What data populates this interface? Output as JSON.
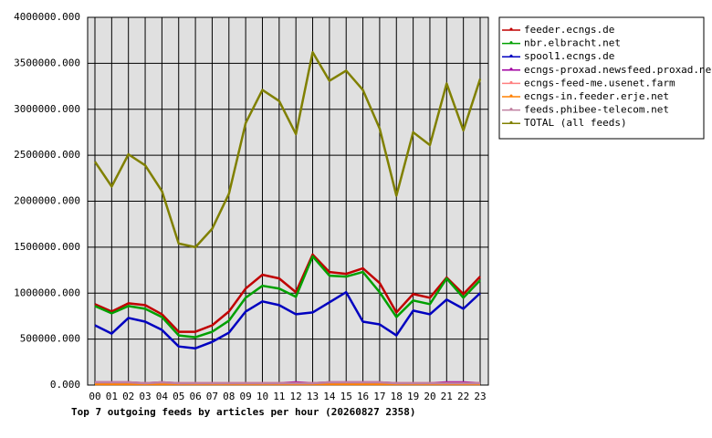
{
  "chart_data": {
    "type": "line",
    "title": "Top 7 outgoing feeds by articles per hour (20260827 2358)",
    "categories": [
      "00",
      "01",
      "02",
      "03",
      "04",
      "05",
      "06",
      "07",
      "08",
      "09",
      "10",
      "11",
      "12",
      "13",
      "14",
      "15",
      "16",
      "17",
      "18",
      "19",
      "20",
      "21",
      "22",
      "23"
    ],
    "ylim": [
      0,
      4000000
    ],
    "yticks": [
      {
        "value": 0,
        "label": "0.000"
      },
      {
        "value": 500000,
        "label": "500000.000"
      },
      {
        "value": 1000000,
        "label": "1000000.000"
      },
      {
        "value": 1500000,
        "label": "1500000.000"
      },
      {
        "value": 2000000,
        "label": "2000000.000"
      },
      {
        "value": 2500000,
        "label": "2500000.000"
      },
      {
        "value": 3000000,
        "label": "3000000.000"
      },
      {
        "value": 3500000,
        "label": "3500000.000"
      },
      {
        "value": 4000000,
        "label": "4000000.000"
      }
    ],
    "grid": true,
    "legend": "right",
    "series": [
      {
        "name": "feeder.ecngs.de",
        "color": "#c00000",
        "values": [
          880000,
          800000,
          890000,
          870000,
          770000,
          580000,
          580000,
          650000,
          800000,
          1050000,
          1200000,
          1160000,
          1010000,
          1420000,
          1230000,
          1210000,
          1270000,
          1110000,
          790000,
          990000,
          950000,
          1170000,
          990000,
          1180000
        ]
      },
      {
        "name": "nbr.elbracht.net",
        "color": "#00a000",
        "values": [
          860000,
          780000,
          860000,
          830000,
          740000,
          540000,
          520000,
          580000,
          700000,
          950000,
          1080000,
          1050000,
          960000,
          1400000,
          1190000,
          1180000,
          1230000,
          1010000,
          740000,
          920000,
          880000,
          1160000,
          950000,
          1140000
        ]
      },
      {
        "name": "spool1.ecngs.de",
        "color": "#0000c0",
        "values": [
          650000,
          560000,
          730000,
          690000,
          600000,
          420000,
          400000,
          470000,
          570000,
          800000,
          910000,
          870000,
          770000,
          790000,
          900000,
          1010000,
          690000,
          660000,
          540000,
          810000,
          770000,
          930000,
          830000,
          1000000
        ]
      },
      {
        "name": "ecngs-proxad.newsfeed.proxad.net",
        "color": "#a000a0",
        "values": [
          30000,
          30000,
          30000,
          20000,
          30000,
          20000,
          20000,
          20000,
          20000,
          20000,
          20000,
          20000,
          30000,
          20000,
          30000,
          30000,
          30000,
          30000,
          20000,
          20000,
          20000,
          30000,
          30000,
          20000
        ]
      },
      {
        "name": "ecngs-feed-me.usenet.farm",
        "color": "#ff8080",
        "values": [
          20000,
          20000,
          20000,
          20000,
          20000,
          20000,
          20000,
          20000,
          20000,
          20000,
          20000,
          20000,
          20000,
          20000,
          20000,
          20000,
          20000,
          20000,
          20000,
          20000,
          20000,
          20000,
          20000,
          20000
        ]
      },
      {
        "name": "ecngs-in.feeder.erje.net",
        "color": "#ff8000",
        "values": [
          10000,
          10000,
          10000,
          10000,
          10000,
          10000,
          10000,
          10000,
          10000,
          10000,
          10000,
          10000,
          10000,
          10000,
          10000,
          10000,
          10000,
          10000,
          10000,
          10000,
          10000,
          10000,
          10000,
          10000
        ]
      },
      {
        "name": "feeds.phibee-telecom.net",
        "color": "#c080a0",
        "values": [
          30000,
          30000,
          30000,
          20000,
          30000,
          20000,
          20000,
          20000,
          20000,
          20000,
          20000,
          20000,
          20000,
          20000,
          30000,
          30000,
          30000,
          30000,
          20000,
          20000,
          20000,
          20000,
          20000,
          20000
        ]
      },
      {
        "name": "TOTAL (all feeds)",
        "color": "#808000",
        "values": [
          2430000,
          2160000,
          2510000,
          2390000,
          2110000,
          1540000,
          1500000,
          1700000,
          2080000,
          2850000,
          3210000,
          3090000,
          2730000,
          3620000,
          3310000,
          3420000,
          3210000,
          2790000,
          2060000,
          2750000,
          2610000,
          3280000,
          2770000,
          3330000
        ]
      }
    ]
  }
}
